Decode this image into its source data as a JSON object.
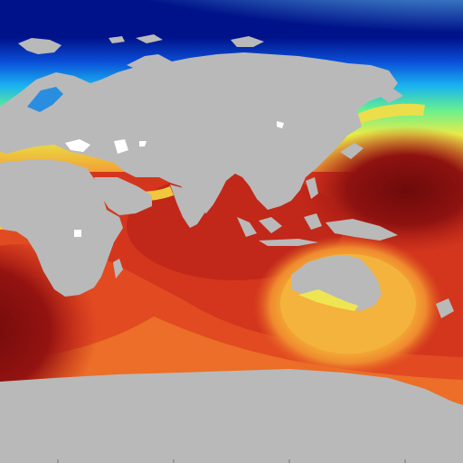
{
  "map": {
    "kind": "global ocean field heatmap",
    "projection": "equirectangular",
    "colormap": [
      "#00128a",
      "#0a4fd8",
      "#19b3f0",
      "#66f08f",
      "#e7ec49",
      "#f6c43b",
      "#f2a135",
      "#ec6e28",
      "#df3d1f",
      "#c51f18",
      "#9a1412",
      "#7c0c0c"
    ],
    "land_color": "#b9b9b9",
    "visible_text": []
  }
}
